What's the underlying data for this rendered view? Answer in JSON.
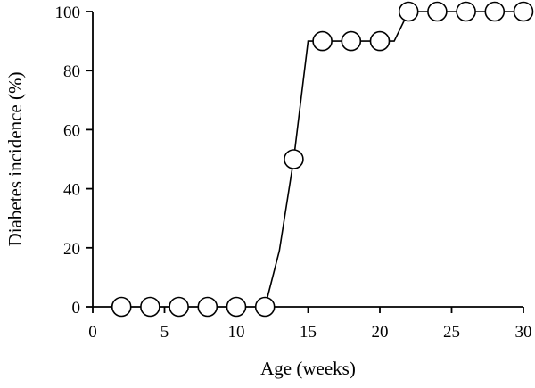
{
  "chart_data": {
    "type": "line",
    "title": "",
    "xlabel": "Age (weeks)",
    "ylabel": "Diabetes incidence (%)",
    "xlim": [
      0,
      30
    ],
    "ylim": [
      0,
      100
    ],
    "xticks": [
      0,
      5,
      10,
      15,
      20,
      25,
      30
    ],
    "yticks": [
      0,
      20,
      40,
      60,
      80,
      100
    ],
    "grid": false,
    "legend": "none",
    "series": [
      {
        "marker": "open-circle",
        "color": "#000000",
        "x": [
          2,
          4,
          6,
          8,
          10,
          12,
          14,
          16,
          18,
          20,
          22,
          24,
          26,
          28,
          30
        ],
        "y": [
          0,
          0,
          0,
          0,
          0,
          0,
          50,
          90,
          90,
          90,
          100,
          100,
          100,
          100,
          100
        ]
      }
    ],
    "curve_x": [
      12,
      13,
      14,
      15,
      15.4,
      16,
      18,
      20,
      21,
      22,
      24,
      26,
      28,
      30
    ],
    "curve_y": [
      0,
      19,
      50,
      90,
      90,
      90,
      90,
      90,
      90,
      100,
      100,
      100,
      100,
      100
    ]
  }
}
